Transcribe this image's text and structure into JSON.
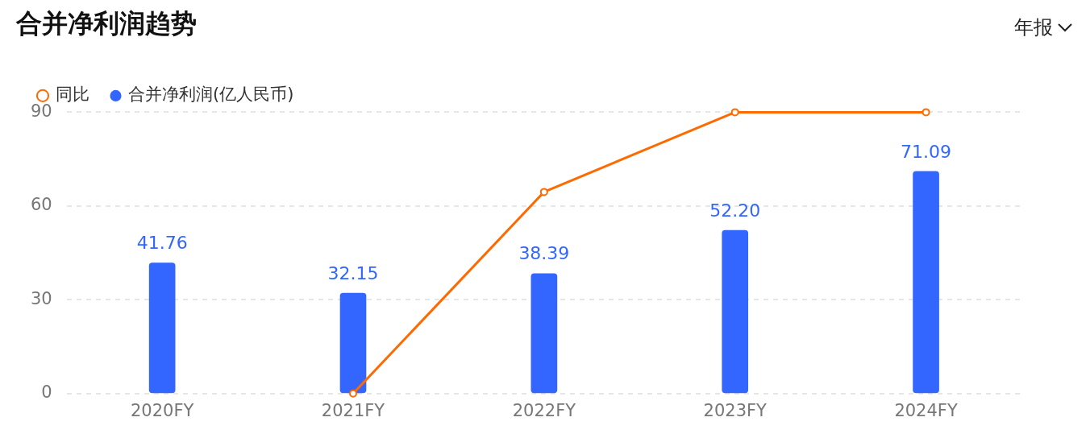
{
  "chart_data": {
    "type": "bar",
    "title": "合并净利润趋势",
    "annotations": [
      "年报"
    ],
    "categories": [
      "2020FY",
      "2021FY",
      "2022FY",
      "2023FY",
      "2024FY"
    ],
    "series": [
      {
        "name": "合并净利润(亿人民币)",
        "color": "#3366ff",
        "values": [
          41.76,
          32.15,
          38.39,
          52.2,
          71.09
        ],
        "value_labels": [
          "41.76",
          "32.15",
          "38.39",
          "52.20",
          "71.09"
        ]
      },
      {
        "name": "同比",
        "type": "line",
        "color": "#ff6a00",
        "values": [
          null,
          0,
          64.5,
          90,
          90
        ]
      }
    ],
    "ylim": [
      0,
      90
    ],
    "yticks": [
      0,
      30,
      60,
      90
    ],
    "grid": "y",
    "legend": "top left",
    "marker": "circle"
  }
}
